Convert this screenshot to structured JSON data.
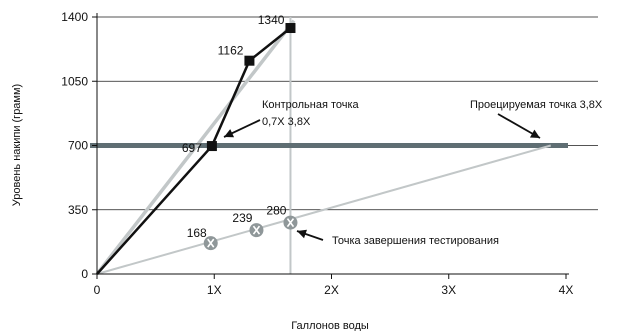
{
  "chart_data": {
    "type": "line",
    "xlabel": "Галлонов воды",
    "ylabel": "Уровень накипи (грамм)",
    "xlim": [
      0,
      4
    ],
    "ylim": [
      0,
      1400
    ],
    "x_ticks": [
      {
        "value": 0,
        "label": "0"
      },
      {
        "value": 1,
        "label": "1X"
      },
      {
        "value": 2,
        "label": "2X"
      },
      {
        "value": 3,
        "label": "3X"
      },
      {
        "value": 4,
        "label": "4X"
      }
    ],
    "y_ticks": [
      {
        "value": 0,
        "label": "0"
      },
      {
        "value": 350,
        "label": "350"
      },
      {
        "value": 700,
        "label": "700"
      },
      {
        "value": 1050,
        "label": "1050"
      },
      {
        "value": 1400,
        "label": "1400"
      }
    ],
    "series": [
      {
        "role": "measured",
        "x": [
          0,
          0.98,
          1.3,
          1.65
        ],
        "y": [
          0,
          697,
          1162,
          1340
        ],
        "markers": [
          "none",
          "square",
          "square",
          "square"
        ],
        "labels": [
          "",
          "697",
          "1162",
          "1340"
        ]
      },
      {
        "role": "steep-reference",
        "x": [
          0,
          1.68
        ],
        "y": [
          0,
          1380
        ]
      },
      {
        "role": "projected",
        "x": [
          0,
          3.87
        ],
        "y": [
          0,
          700
        ]
      },
      {
        "role": "end-of-test",
        "x": [
          0.97,
          1.36,
          1.65
        ],
        "y": [
          168,
          239,
          280
        ],
        "markers": [
          "circle",
          "circle",
          "circle"
        ],
        "labels": [
          "168",
          "239",
          "280"
        ]
      }
    ],
    "threshold": {
      "y": 700
    },
    "vertical_line": {
      "x": 1.65
    },
    "annotations": {
      "control_point": [
        "Контрольная точка",
        "0,7X 3,8X"
      ],
      "projected_point": "Проецируемая точка 3,8X",
      "test_end": "Точка завершения тестирования"
    },
    "grid": "horizontal",
    "colors": {
      "measured": "#111111",
      "reference": "#c2c7c8",
      "threshold": "#5f6e73",
      "marker_circle": "#8f9799",
      "grid": "#1a1a1a"
    }
  }
}
